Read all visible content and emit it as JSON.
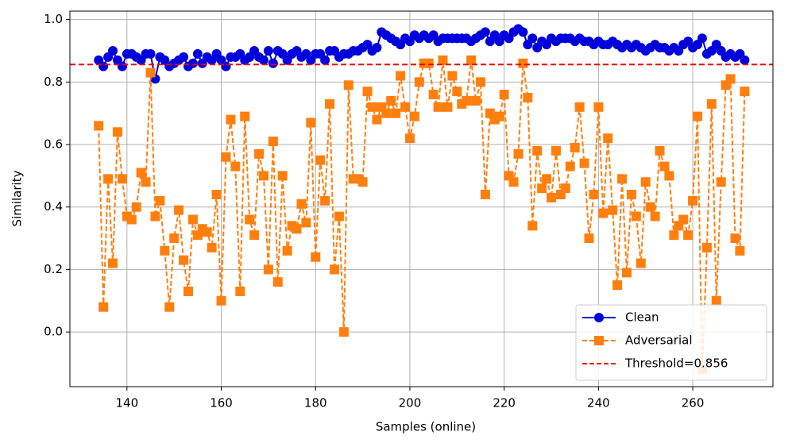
{
  "chart_data": {
    "type": "line",
    "xlabel": "Samples (online)",
    "ylabel": "Similarity",
    "x": [
      134,
      135,
      136,
      137,
      138,
      139,
      140,
      141,
      142,
      143,
      144,
      145,
      146,
      147,
      148,
      149,
      150,
      151,
      152,
      153,
      154,
      155,
      156,
      157,
      158,
      159,
      160,
      161,
      162,
      163,
      164,
      165,
      166,
      167,
      168,
      169,
      170,
      171,
      172,
      173,
      174,
      175,
      176,
      177,
      178,
      179,
      180,
      181,
      182,
      183,
      184,
      185,
      186,
      187,
      188,
      189,
      190,
      191,
      192,
      193,
      194,
      195,
      196,
      197,
      198,
      199,
      200,
      201,
      202,
      203,
      204,
      205,
      206,
      207,
      208,
      209,
      210,
      211,
      212,
      213,
      214,
      215,
      216,
      217,
      218,
      219,
      220,
      221,
      222,
      223,
      224,
      225,
      226,
      227,
      228,
      229,
      230,
      231,
      232,
      233,
      234,
      235,
      236,
      237,
      238,
      239,
      240,
      241,
      242,
      243,
      244,
      245,
      246,
      247,
      248,
      249,
      250,
      251,
      252,
      253,
      254,
      255,
      256,
      257,
      258,
      259,
      260,
      261,
      262,
      263,
      264,
      265,
      266,
      267,
      268,
      269,
      270,
      271
    ],
    "series": [
      {
        "name": "Clean",
        "color": "#0000dd",
        "marker": "circle",
        "dashed": false,
        "values": [
          0.87,
          0.85,
          0.88,
          0.9,
          0.87,
          0.85,
          0.89,
          0.89,
          0.88,
          0.87,
          0.89,
          0.89,
          0.81,
          0.88,
          0.87,
          0.85,
          0.86,
          0.87,
          0.88,
          0.85,
          0.86,
          0.89,
          0.86,
          0.88,
          0.87,
          0.89,
          0.87,
          0.85,
          0.88,
          0.88,
          0.89,
          0.87,
          0.88,
          0.9,
          0.88,
          0.87,
          0.9,
          0.86,
          0.9,
          0.89,
          0.87,
          0.89,
          0.9,
          0.88,
          0.89,
          0.87,
          0.89,
          0.89,
          0.87,
          0.9,
          0.9,
          0.88,
          0.89,
          0.89,
          0.9,
          0.9,
          0.91,
          0.92,
          0.9,
          0.91,
          0.96,
          0.95,
          0.94,
          0.93,
          0.92,
          0.94,
          0.93,
          0.95,
          0.94,
          0.95,
          0.94,
          0.95,
          0.93,
          0.94,
          0.94,
          0.94,
          0.94,
          0.94,
          0.94,
          0.93,
          0.94,
          0.95,
          0.96,
          0.93,
          0.95,
          0.93,
          0.95,
          0.94,
          0.96,
          0.97,
          0.96,
          0.92,
          0.94,
          0.91,
          0.93,
          0.92,
          0.94,
          0.93,
          0.94,
          0.94,
          0.94,
          0.93,
          0.94,
          0.93,
          0.93,
          0.92,
          0.93,
          0.92,
          0.92,
          0.93,
          0.92,
          0.91,
          0.92,
          0.91,
          0.92,
          0.91,
          0.9,
          0.91,
          0.92,
          0.91,
          0.91,
          0.9,
          0.91,
          0.9,
          0.92,
          0.93,
          0.91,
          0.92,
          0.94,
          0.89,
          0.9,
          0.92,
          0.9,
          0.88,
          0.89,
          0.88,
          0.89,
          0.87
        ]
      },
      {
        "name": "Adversarial",
        "color": "#ff7f0e",
        "marker": "square",
        "dashed": true,
        "values": [
          0.66,
          0.08,
          0.49,
          0.22,
          0.64,
          0.49,
          0.37,
          0.36,
          0.4,
          0.51,
          0.48,
          0.83,
          0.37,
          0.42,
          0.26,
          0.08,
          0.3,
          0.39,
          0.23,
          0.13,
          0.36,
          0.31,
          0.33,
          0.32,
          0.27,
          0.44,
          0.1,
          0.56,
          0.68,
          0.53,
          0.13,
          0.69,
          0.36,
          0.31,
          0.57,
          0.5,
          0.2,
          0.61,
          0.16,
          0.5,
          0.26,
          0.34,
          0.33,
          0.41,
          0.35,
          0.67,
          0.24,
          0.55,
          0.42,
          0.73,
          0.2,
          0.37,
          0.0,
          0.79,
          0.49,
          0.49,
          0.48,
          0.77,
          0.72,
          0.68,
          0.72,
          0.7,
          0.74,
          0.7,
          0.82,
          0.72,
          0.62,
          0.69,
          0.8,
          0.86,
          0.86,
          0.76,
          0.72,
          0.87,
          0.72,
          0.82,
          0.77,
          0.73,
          0.74,
          0.87,
          0.74,
          0.8,
          0.44,
          0.7,
          0.68,
          0.69,
          0.76,
          0.5,
          0.48,
          0.57,
          0.86,
          0.75,
          0.34,
          0.58,
          0.46,
          0.49,
          0.43,
          0.58,
          0.44,
          0.46,
          0.53,
          0.59,
          0.72,
          0.54,
          0.3,
          0.44,
          0.72,
          0.38,
          0.62,
          0.39,
          0.15,
          0.49,
          0.19,
          0.44,
          0.37,
          0.22,
          0.48,
          0.4,
          0.37,
          0.58,
          0.53,
          0.5,
          0.31,
          0.34,
          0.36,
          0.31,
          0.42,
          0.69,
          -0.12,
          0.27,
          0.73,
          0.1,
          0.48,
          0.79,
          0.81,
          0.3,
          0.26,
          0.77
        ]
      }
    ],
    "threshold": {
      "value": 0.856,
      "label": "Threshold=0.856",
      "color": "#ee0000"
    },
    "xlim": [
      127.9,
      277
    ],
    "ylim": [
      -0.175,
      1.027
    ],
    "xticks": [
      140,
      160,
      180,
      200,
      220,
      240,
      260
    ],
    "yticks": [
      {
        "value": 0,
        "label": "0.0"
      },
      0.2,
      0.4,
      0.6,
      0.8,
      {
        "value": 1,
        "label": "1.0"
      }
    ],
    "grid": true,
    "legend": "lower right"
  }
}
